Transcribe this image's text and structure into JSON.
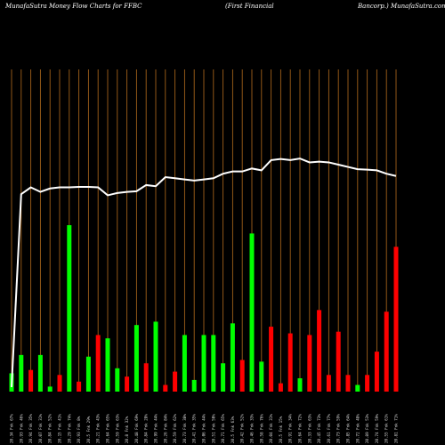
{
  "header": {
    "title_left": "MunafaSutra  Money Flow  Charts for FFBC",
    "title_mid": "(First Financial",
    "title_right": "Bancorp.) MunafaSutra.com"
  },
  "chart_data": {
    "type": "bar",
    "title": "MunafaSutra  Money Flow  Charts for FFBC (First Financial Bancorp.) MunafaSutra.com",
    "ylim": [
      0,
      100
    ],
    "colors": {
      "background": "#000000",
      "grid": "#a0601a",
      "up": "#00ff00",
      "down": "#ff0000",
      "line": "#ffffff"
    },
    "categories": [
      "20.34 Fnk 67%",
      "20.93 Fnk 46%",
      "20.94 Fnk 35%",
      "20.07 Fnk 31%",
      "20.84 Fnk 52%",
      "20.15 Fnk 41%",
      "20.29 Fnk 74%",
      "20.93 Fnk 8%",
      "20.5 Fnk 29%",
      "20.21 Fnk 43%",
      "20.64 Fnk 65%",
      "20.59 Fnk 63%",
      "20.8 Fnk 32%",
      "20.48 Fnk 69%",
      "20.84 Fnk 28%",
      "20.99 Fnk 44%",
      "20.26 Fnk 84%",
      "20.59 Fnk 62%",
      "20.73 Fnk 38%",
      "20.41 Fnk 35%",
      "20.06 Fnk 44%",
      "20.51 Fnk 50%",
      "20.71 Fnk 65%",
      "20.5 Fnk 63%",
      "20.42 Fnk 52%",
      "20.46 Fnk 33%",
      "20.58 Fnk 76%",
      "20.04 Fnk 31%",
      "20.5 Fnk 15%",
      "20.91 Fnk 34%",
      "20.64 Fnk 72%",
      "20.33 Fnk 63%",
      "20.45 Fnk 73%",
      "20.61 Fnk 77%",
      "20.73 Fnk 59%",
      "20.85 Fnk 64%",
      "20.72 Fnk 48%",
      "20.89 Fnk 53%",
      "20.74 Fnk 59%",
      "20.55 Fnk 61%",
      "20.81 Fnk 71%"
    ],
    "bars": [
      {
        "v": 11,
        "c": "up"
      },
      {
        "v": 22,
        "c": "up"
      },
      {
        "v": 13,
        "c": "down"
      },
      {
        "v": 22,
        "c": "up"
      },
      {
        "v": 3,
        "c": "up"
      },
      {
        "v": 10,
        "c": "down"
      },
      {
        "v": 100,
        "c": "up"
      },
      {
        "v": 6,
        "c": "down"
      },
      {
        "v": 21,
        "c": "up"
      },
      {
        "v": 34,
        "c": "down"
      },
      {
        "v": 32,
        "c": "up"
      },
      {
        "v": 14,
        "c": "up"
      },
      {
        "v": 9,
        "c": "down"
      },
      {
        "v": 40,
        "c": "up"
      },
      {
        "v": 17,
        "c": "down"
      },
      {
        "v": 42,
        "c": "up"
      },
      {
        "v": 4,
        "c": "down"
      },
      {
        "v": 12,
        "c": "down"
      },
      {
        "v": 34,
        "c": "up"
      },
      {
        "v": 7,
        "c": "up"
      },
      {
        "v": 34,
        "c": "up"
      },
      {
        "v": 34,
        "c": "up"
      },
      {
        "v": 17,
        "c": "up"
      },
      {
        "v": 41,
        "c": "up"
      },
      {
        "v": 19,
        "c": "down"
      },
      {
        "v": 95,
        "c": "up"
      },
      {
        "v": 18,
        "c": "up"
      },
      {
        "v": 39,
        "c": "down"
      },
      {
        "v": 5,
        "c": "down"
      },
      {
        "v": 35,
        "c": "down"
      },
      {
        "v": 8,
        "c": "up"
      },
      {
        "v": 34,
        "c": "down"
      },
      {
        "v": 49,
        "c": "down"
      },
      {
        "v": 10,
        "c": "down"
      },
      {
        "v": 36,
        "c": "down"
      },
      {
        "v": 10,
        "c": "down"
      },
      {
        "v": 4,
        "c": "up"
      },
      {
        "v": 10,
        "c": "down"
      },
      {
        "v": 24,
        "c": "down"
      },
      {
        "v": 48,
        "c": "down"
      },
      {
        "v": 87,
        "c": "down"
      }
    ],
    "line": [
      2,
      87,
      90,
      88,
      89.5,
      90,
      90,
      90.2,
      90.2,
      90,
      86.5,
      87.5,
      88,
      88.3,
      91,
      90.5,
      94.5,
      94,
      93.5,
      93,
      93.5,
      94,
      96,
      97,
      97,
      98.3,
      97.5,
      102,
      102.5,
      102,
      102.7,
      101,
      101.3,
      101,
      100,
      99,
      98,
      97.8,
      97.5,
      96,
      95
    ]
  }
}
